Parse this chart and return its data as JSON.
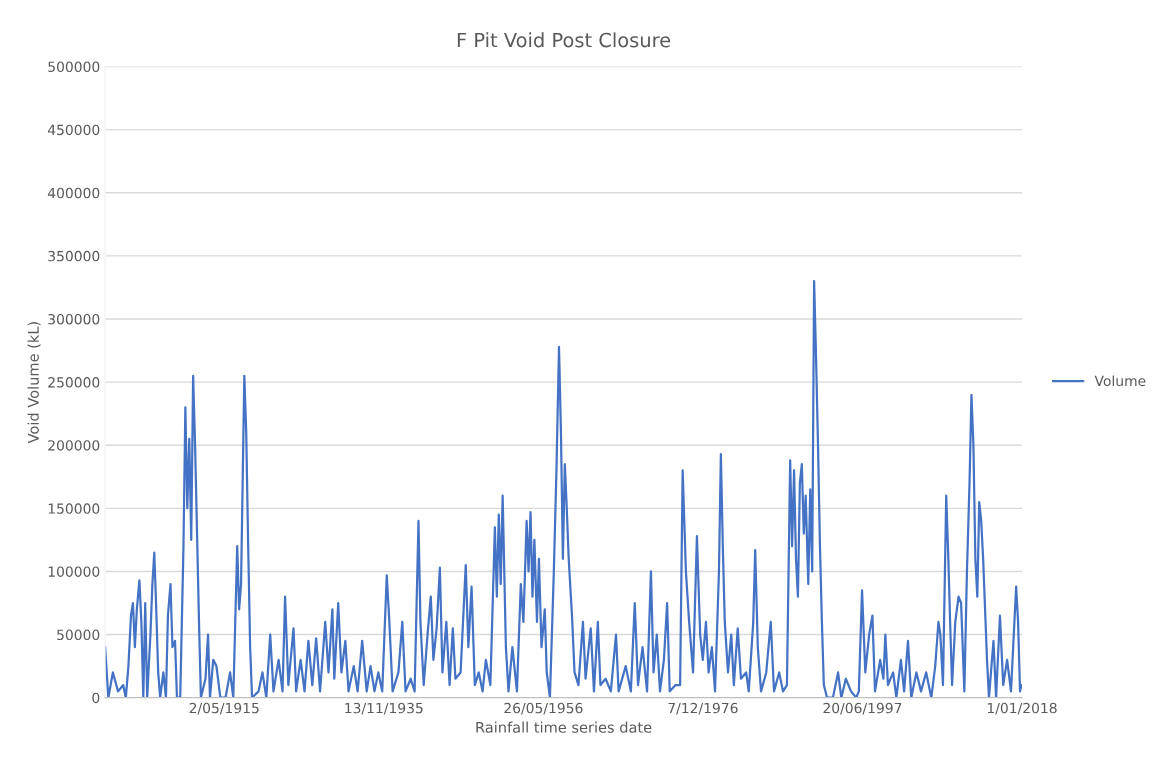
{
  "chart_data": {
    "type": "line",
    "title": "F Pit Void Post Closure",
    "xlabel": "Rainfall time series date",
    "ylabel": "Void Volume (kL)",
    "xlim": [
      "1900-01-01",
      "2018-01-01"
    ],
    "xticks": [
      {
        "value": "1915-05-02",
        "label": "2/05/1915"
      },
      {
        "value": "1935-11-13",
        "label": "13/11/1935"
      },
      {
        "value": "1956-05-26",
        "label": "26/05/1956"
      },
      {
        "value": "1976-12-07",
        "label": "7/12/1976"
      },
      {
        "value": "1997-06-20",
        "label": "20/06/1997"
      },
      {
        "value": "2018-01-01",
        "label": "1/01/2018"
      }
    ],
    "ylim": [
      0,
      500000
    ],
    "yticks": [
      0,
      50000,
      100000,
      150000,
      200000,
      250000,
      300000,
      350000,
      400000,
      450000,
      500000
    ],
    "grid": "y",
    "legend": "right",
    "line_style": "solid",
    "marker": "none",
    "series": [
      {
        "name": "Volume",
        "color": "#4472c4",
        "x": [
          "1900-01",
          "1900-06",
          "1901-01",
          "1901-09",
          "1902-05",
          "1902-09",
          "1903-01",
          "1903-05",
          "1903-08",
          "1903-11",
          "1904-02",
          "1904-06",
          "1904-09",
          "1904-12",
          "1905-03",
          "1905-06",
          "1905-11",
          "1906-02",
          "1906-05",
          "1906-08",
          "1906-11",
          "1907-02",
          "1907-07",
          "1907-11",
          "1908-02",
          "1908-06",
          "1908-09",
          "1909-01",
          "1909-04",
          "1909-09",
          "1910-02",
          "1910-05",
          "1910-08",
          "1910-11",
          "1911-02",
          "1911-05",
          "1911-08",
          "1911-11",
          "1912-02",
          "1912-05",
          "1912-12",
          "1913-04",
          "1913-07",
          "1913-12",
          "1914-05",
          "1914-11",
          "1915-07",
          "1916-02",
          "1916-07",
          "1917-01",
          "1917-04",
          "1917-07",
          "1917-12",
          "1918-03",
          "1918-06",
          "1918-09",
          "1918-12",
          "1919-10",
          "1920-04",
          "1920-10",
          "1921-04",
          "1921-09",
          "1922-05",
          "1922-11",
          "1923-03",
          "1923-08",
          "1924-04",
          "1924-08",
          "1925-03",
          "1925-09",
          "1926-03",
          "1926-09",
          "1927-03",
          "1927-09",
          "1928-05",
          "1928-10",
          "1929-04",
          "1929-07",
          "1930-01",
          "1930-06",
          "1930-12",
          "1931-05",
          "1932-01",
          "1932-07",
          "1933-02",
          "1933-09",
          "1934-03",
          "1934-09",
          "1935-03",
          "1935-09",
          "1936-04",
          "1936-08",
          "1937-01",
          "1937-10",
          "1938-04",
          "1938-09",
          "1939-05",
          "1939-11",
          "1940-05",
          "1940-08",
          "1941-01",
          "1941-07",
          "1941-12",
          "1942-04",
          "1942-09",
          "1943-02",
          "1943-06",
          "1943-12",
          "1944-05",
          "1944-10",
          "1945-02",
          "1945-10",
          "1946-06",
          "1946-10",
          "1947-03",
          "1947-08",
          "1948-02",
          "1948-08",
          "1949-01",
          "1949-08",
          "1950-03",
          "1950-06",
          "1950-09",
          "1950-12",
          "1951-03",
          "1951-08",
          "1951-12",
          "1952-06",
          "1953-01",
          "1953-07",
          "1953-11",
          "1954-04",
          "1954-07",
          "1954-10",
          "1955-01",
          "1955-04",
          "1955-08",
          "1955-11",
          "1956-03",
          "1956-08",
          "1956-11",
          "1957-04",
          "1957-10",
          "1958-02",
          "1958-06",
          "1958-09",
          "1958-12",
          "1959-03",
          "1959-06",
          "1959-09",
          "1960-02",
          "1960-06",
          "1960-12",
          "1961-07",
          "1961-11",
          "1962-07",
          "1962-12",
          "1963-06",
          "1963-10",
          "1964-06",
          "1965-02",
          "1965-10",
          "1966-02",
          "1967-01",
          "1967-09",
          "1968-03",
          "1968-08",
          "1969-03",
          "1969-10",
          "1970-04",
          "1970-08",
          "1971-01",
          "1971-06",
          "1971-12",
          "1972-05",
          "1972-09",
          "1973-06",
          "1974-01",
          "1974-05",
          "1974-10",
          "1975-03",
          "1975-09",
          "1976-03",
          "1976-08",
          "1976-12",
          "1977-05",
          "1977-09",
          "1978-02",
          "1978-07",
          "1979-01",
          "1979-04",
          "1979-07",
          "1979-10",
          "1980-03",
          "1980-08",
          "1980-12",
          "1981-06",
          "1981-11",
          "1982-07",
          "1982-11",
          "1983-06",
          "1983-09",
          "1984-01",
          "1984-06",
          "1985-02",
          "1985-09",
          "1986-02",
          "1986-10",
          "1987-04",
          "1987-10",
          "1988-03",
          "1988-06",
          "1988-09",
          "1988-12",
          "1989-03",
          "1989-06",
          "1989-09",
          "1989-12",
          "1990-03",
          "1990-07",
          "1990-10",
          "1991-01",
          "1991-04",
          "1991-07",
          "1991-10",
          "1992-01",
          "1992-04",
          "1992-07",
          "1992-12",
          "1993-09",
          "1994-05",
          "1994-10",
          "1995-05",
          "1996-01",
          "1996-09",
          "1997-01",
          "1997-06",
          "1997-11",
          "1998-05",
          "1998-10",
          "1999-02",
          "1999-10",
          "2000-03",
          "2000-06",
          "2000-10",
          "2001-06",
          "2001-11",
          "2002-06",
          "2002-11",
          "2003-05",
          "2003-10",
          "2004-06",
          "2005-01",
          "2005-09",
          "2006-05",
          "2006-11",
          "2007-04",
          "2007-07",
          "2007-11",
          "2008-04",
          "2008-07",
          "2008-10",
          "2009-01",
          "2009-06",
          "2009-11",
          "2010-03",
          "2010-08",
          "2010-12",
          "2011-04",
          "2011-07",
          "2011-10",
          "2012-01",
          "2012-04",
          "2012-07",
          "2012-10",
          "2013-01",
          "2013-04",
          "2013-07",
          "2013-10",
          "2014-05",
          "2014-09",
          "2015-03",
          "2015-08",
          "2016-02",
          "2016-08",
          "2017-04",
          "2017-07",
          "2017-10",
          "2017-12"
        ],
        "values": [
          40000,
          0,
          20000,
          5000,
          10000,
          0,
          25000,
          65000,
          75000,
          40000,
          70000,
          93000,
          60000,
          0,
          75000,
          0,
          50000,
          90000,
          115000,
          70000,
          20000,
          0,
          20000,
          0,
          65000,
          90000,
          40000,
          45000,
          0,
          0,
          120000,
          230000,
          150000,
          205000,
          125000,
          255000,
          200000,
          130000,
          60000,
          0,
          15000,
          50000,
          0,
          30000,
          25000,
          0,
          0,
          20000,
          0,
          120000,
          70000,
          90000,
          255000,
          210000,
          120000,
          40000,
          0,
          5000,
          20000,
          0,
          50000,
          5000,
          30000,
          5000,
          80000,
          10000,
          55000,
          5000,
          30000,
          5000,
          45000,
          10000,
          47000,
          5000,
          60000,
          20000,
          70000,
          15000,
          75000,
          20000,
          45000,
          5000,
          25000,
          5000,
          45000,
          5000,
          25000,
          5000,
          20000,
          5000,
          97000,
          60000,
          5000,
          20000,
          60000,
          5000,
          15000,
          5000,
          140000,
          60000,
          10000,
          50000,
          80000,
          30000,
          55000,
          103000,
          20000,
          60000,
          10000,
          55000,
          15000,
          20000,
          105000,
          40000,
          88000,
          10000,
          20000,
          5000,
          30000,
          10000,
          135000,
          80000,
          145000,
          90000,
          160000,
          40000,
          5000,
          40000,
          5000,
          90000,
          60000,
          140000,
          100000,
          147000,
          80000,
          125000,
          60000,
          110000,
          40000,
          70000,
          20000,
          0,
          100000,
          180000,
          278000,
          210000,
          110000,
          185000,
          150000,
          110000,
          65000,
          20000,
          10000,
          60000,
          15000,
          55000,
          5000,
          60000,
          10000,
          15000,
          5000,
          50000,
          5000,
          25000,
          5000,
          75000,
          10000,
          40000,
          5000,
          100000,
          20000,
          50000,
          5000,
          30000,
          75000,
          5000,
          10000,
          10000,
          180000,
          100000,
          60000,
          20000,
          128000,
          50000,
          30000,
          60000,
          20000,
          40000,
          5000,
          100000,
          193000,
          120000,
          60000,
          20000,
          50000,
          10000,
          55000,
          15000,
          20000,
          5000,
          60000,
          117000,
          40000,
          5000,
          20000,
          60000,
          5000,
          20000,
          5000,
          10000,
          188000,
          120000,
          180000,
          110000,
          80000,
          170000,
          185000,
          130000,
          160000,
          90000,
          165000,
          100000,
          330000,
          270000,
          200000,
          120000,
          60000,
          10000,
          0,
          0,
          20000,
          0,
          15000,
          5000,
          0,
          5000,
          85000,
          20000,
          50000,
          65000,
          5000,
          30000,
          15000,
          50000,
          10000,
          20000,
          0,
          30000,
          5000,
          45000,
          0,
          20000,
          5000,
          20000,
          0,
          25000,
          60000,
          50000,
          10000,
          160000,
          115000,
          60000,
          10000,
          60000,
          80000,
          75000,
          5000,
          100000,
          170000,
          240000,
          200000,
          110000,
          80000,
          155000,
          140000,
          110000,
          70000,
          30000,
          0,
          45000,
          0,
          65000,
          10000,
          30000,
          5000,
          88000,
          60000,
          5000,
          10000
        ]
      }
    ]
  }
}
